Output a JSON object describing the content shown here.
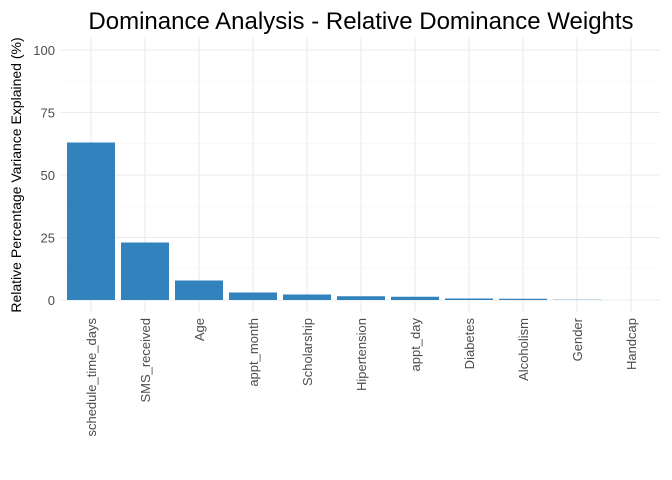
{
  "chart_data": {
    "type": "bar",
    "title": "Dominance Analysis - Relative Dominance Weights",
    "xlabel": "",
    "ylabel": "Relative Percentage Variance Explained (%)",
    "ylim": [
      0,
      100
    ],
    "yticks": [
      0,
      25,
      50,
      75,
      100
    ],
    "grid": true,
    "legend": "none",
    "bar_color": "#3182bd",
    "categories": [
      "schedule_time_days",
      "SMS_received",
      "Age",
      "appt_month",
      "Scholarship",
      "Hipertension",
      "appt_day",
      "Diabetes",
      "Alcoholism",
      "Gender",
      "Handcap"
    ],
    "values": [
      63.0,
      23.0,
      7.8,
      3.0,
      2.2,
      1.5,
      1.3,
      0.6,
      0.5,
      0.1,
      0.0
    ]
  }
}
